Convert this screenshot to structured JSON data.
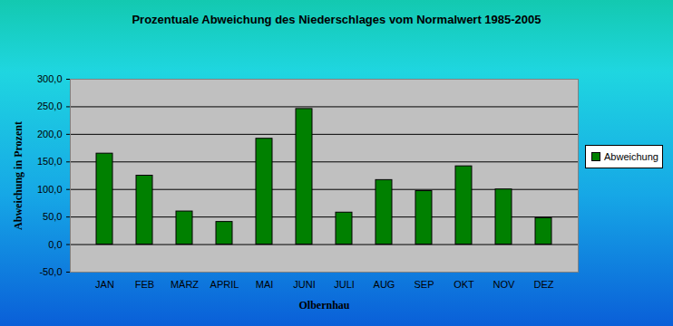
{
  "chart_data": {
    "type": "bar",
    "title": "Prozentuale Abweichung des Niederschlages vom Normalwert 1985-2005",
    "x_label": "Olbernhau",
    "y_label": "Abweichung in Prozent",
    "categories": [
      "JAN",
      "FEB",
      "MÄRZ",
      "APRIL",
      "MAI",
      "JUNI",
      "JULI",
      "AUG",
      "SEP",
      "OKT",
      "NOV",
      "DEZ"
    ],
    "series": [
      {
        "name": "Abweichung",
        "color": "#008000",
        "values": [
          165,
          125,
          60,
          41,
          192,
          246,
          58,
          117,
          97,
          142,
          100,
          48
        ]
      }
    ],
    "ylim": [
      -50,
      300
    ],
    "yticks": [
      {
        "value": -50,
        "label": "-50,0"
      },
      {
        "value": 0,
        "label": "0,0"
      },
      {
        "value": 50,
        "label": "50,0"
      },
      {
        "value": 100,
        "label": "100,0"
      },
      {
        "value": 150,
        "label": "150,0"
      },
      {
        "value": 200,
        "label": "200,0"
      },
      {
        "value": 250,
        "label": "250,0"
      },
      {
        "value": 300,
        "label": "300,0"
      }
    ],
    "grid": true,
    "legend": "right"
  }
}
